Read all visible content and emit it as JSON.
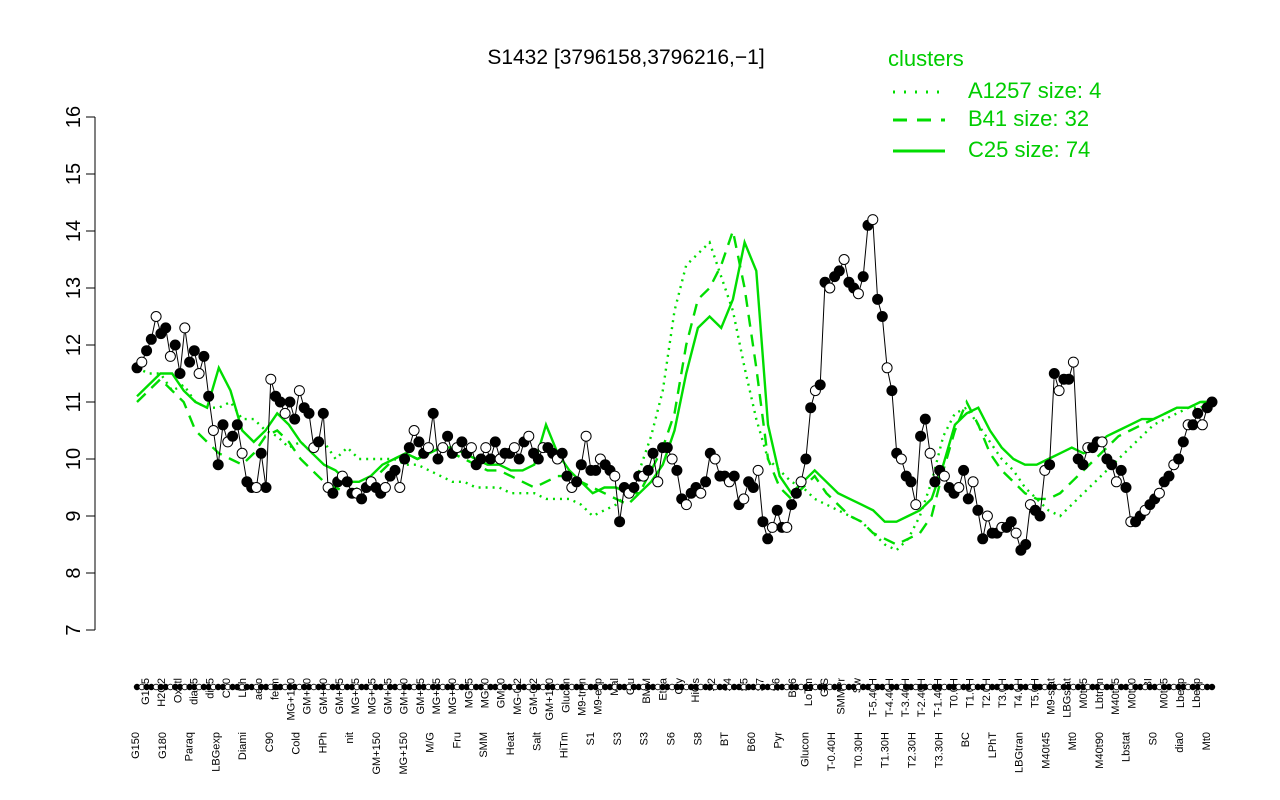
{
  "chart_data": {
    "type": "line",
    "title": "S1432 [3796158,3796216,−1]",
    "ylim": [
      7,
      16
    ],
    "yticks": [
      "7",
      "8",
      "9",
      "10",
      "11",
      "12",
      "13",
      "14",
      "15",
      "16"
    ],
    "x_tick_labels_top": [
      "G135",
      "H2O2",
      "Oxctl",
      "dia15",
      "dia5",
      "C30",
      "LPh",
      "aero",
      "ferm",
      "MG+120",
      "GM+90",
      "GM+60",
      "GM+45",
      "MG+45",
      "MG+25",
      "GM+25",
      "GM+10",
      "GM+15",
      "MG+15",
      "MG+10",
      "MG+5",
      "MG+0",
      "GM+0",
      "MG-0.2",
      "GM-0.2",
      "GM+150",
      "Glucon",
      "M9-tran",
      "M9-exp",
      "Mal",
      "Glu",
      "BMM",
      "Etha",
      "Gly",
      "HiOs",
      "S2",
      "S4",
      "S5",
      "S7",
      "S6",
      "B36",
      "LoTm",
      "G/S",
      "SMMPr",
      "Sw",
      "T-5.40H",
      "T-4.40H",
      "T-3.40H",
      "T-2.40H",
      "T-1.40H",
      "T0.0H",
      "T1.0H",
      "T2.0H",
      "T3.0H",
      "T4.0H",
      "T5.0H",
      "M9-stat",
      "LBGstat",
      "M0t45",
      "Lbtran",
      "M40t45",
      "M0t90",
      "BI",
      "M0t45",
      "Lbexp",
      "Lbexp"
    ],
    "x_tick_labels_bottom": [
      "G150",
      "G180",
      "Paraq",
      "LBGexp",
      "Diami",
      "C90",
      "Cold",
      "HPh",
      "nit",
      "GM+150",
      "MG+150",
      "M/G",
      "Fru",
      "SMM",
      "Heat",
      "Salt",
      "HiTm",
      "S1",
      "S3",
      "S3",
      "S6",
      "S8",
      "BT",
      "B60",
      "Pyr",
      "Glucon",
      "T-0.40H",
      "T0.30H",
      "T1.30H",
      "T2.30H",
      "T3.30H",
      "BC",
      "LPhT",
      "LBGtran",
      "M40t45",
      "Mt0",
      "M40t90",
      "Lbstat",
      "S0",
      "dia0",
      "Mt0"
    ],
    "points": [
      11.6,
      11.7,
      11.9,
      12.1,
      12.5,
      12.2,
      12.3,
      11.8,
      12.0,
      11.5,
      12.3,
      11.7,
      11.9,
      11.5,
      11.8,
      11.1,
      10.5,
      9.9,
      10.6,
      10.3,
      10.4,
      10.6,
      10.1,
      9.6,
      9.5,
      9.5,
      10.1,
      9.5,
      11.4,
      11.1,
      11.0,
      10.8,
      11.0,
      10.7,
      11.2,
      10.9,
      10.8,
      10.2,
      10.3,
      10.8,
      9.5,
      9.4,
      9.6,
      9.7,
      9.6,
      9.4,
      9.4,
      9.3,
      9.5,
      9.6,
      9.5,
      9.4,
      9.5,
      9.7,
      9.8,
      9.5,
      10.0,
      10.2,
      10.5,
      10.3,
      10.1,
      10.2,
      10.8,
      10.0,
      10.2,
      10.4,
      10.1,
      10.2,
      10.3,
      10.1,
      10.2,
      9.9,
      10.0,
      10.2,
      10.0,
      10.3,
      10.0,
      10.1,
      10.1,
      10.2,
      10.0,
      10.3,
      10.4,
      10.1,
      10.0,
      10.2,
      10.2,
      10.1,
      10.0,
      10.1,
      9.7,
      9.5,
      9.6,
      9.9,
      10.4,
      9.8,
      9.8,
      10.0,
      9.9,
      9.8,
      9.7,
      8.9,
      9.5,
      9.4,
      9.5,
      9.7,
      9.7,
      9.8,
      10.1,
      9.6,
      10.2,
      10.2,
      10.0,
      9.8,
      9.3,
      9.2,
      9.4,
      9.5,
      9.4,
      9.6,
      10.1,
      10.0,
      9.7,
      9.7,
      9.6,
      9.7,
      9.2,
      9.3,
      9.6,
      9.5,
      9.8,
      8.9,
      8.6,
      8.8,
      9.1,
      8.8,
      8.8,
      9.2,
      9.4,
      9.6,
      10.0,
      10.9,
      11.2,
      11.3,
      13.1,
      13.0,
      13.2,
      13.3,
      13.5,
      13.1,
      13.0,
      12.9,
      13.2,
      14.1,
      14.2,
      12.8,
      12.5,
      11.6,
      11.2,
      10.1,
      10.0,
      9.7,
      9.6,
      9.2,
      10.4,
      10.7,
      10.1,
      9.6,
      9.8,
      9.7,
      9.5,
      9.4,
      9.5,
      9.8,
      9.3,
      9.6,
      9.1,
      8.6,
      9.0,
      8.7,
      8.7,
      8.8,
      8.8,
      8.9,
      8.7,
      8.4,
      8.5,
      9.2,
      9.1,
      9.0,
      9.8,
      9.9,
      11.5,
      11.2,
      11.4,
      11.4,
      11.7,
      10.0,
      9.9,
      10.2,
      10.2,
      10.3,
      10.3,
      10.0,
      9.9,
      9.6,
      9.8,
      9.5,
      8.9,
      8.9,
      9.0,
      9.1,
      9.2,
      9.3,
      9.4,
      9.6,
      9.7,
      9.9,
      10.0,
      10.3,
      10.6,
      10.6,
      10.8,
      10.6,
      10.9,
      11.0
    ],
    "series": [
      {
        "name": "A1257 size: 4",
        "color": "#00dd00",
        "style": "dotted",
        "values": [
          11.6,
          11.5,
          11.5,
          11.2,
          11.3,
          11.0,
          10.9,
          10.9,
          11.0,
          10.7,
          10.7,
          10.5,
          10.4,
          10.2,
          10.3,
          10.1,
          10.3,
          10.0,
          10.2,
          10.0,
          10.0,
          10.0,
          10.0,
          9.9,
          9.9,
          9.8,
          9.7,
          9.6,
          9.6,
          9.5,
          9.5,
          9.5,
          9.4,
          9.4,
          9.4,
          9.3,
          9.3,
          9.3,
          9.2,
          9.0,
          9.1,
          9.2,
          9.4,
          9.8,
          10.4,
          11.2,
          12.6,
          13.4,
          13.6,
          13.8,
          13.2,
          12.6,
          11.6,
          10.7,
          10.0,
          9.8,
          9.6,
          9.5,
          9.3,
          9.2,
          9.1,
          9.0,
          8.9,
          8.7,
          8.5,
          8.4,
          8.6,
          9.0,
          9.6,
          10.4,
          10.8,
          10.9,
          10.6,
          10.3,
          10.0,
          9.8,
          9.5,
          9.3,
          9.1,
          9.0,
          9.2,
          9.4,
          9.6,
          9.8,
          10.0,
          10.2,
          10.4,
          10.6,
          10.7,
          10.8,
          10.9,
          10.9,
          11.0
        ]
      },
      {
        "name": "B41 size: 32",
        "color": "#00dd00",
        "style": "dashed",
        "values": [
          11.0,
          11.2,
          11.4,
          11.2,
          11.0,
          10.5,
          10.3,
          10.1,
          10.0,
          9.9,
          10.1,
          10.4,
          10.5,
          10.3,
          10.0,
          9.8,
          9.6,
          9.5,
          9.4,
          9.5,
          9.6,
          9.8,
          10.0,
          10.1,
          10.0,
          10.1,
          10.2,
          10.1,
          10.0,
          9.9,
          9.8,
          9.8,
          9.7,
          9.6,
          9.5,
          9.6,
          9.7,
          9.7,
          9.6,
          9.5,
          9.4,
          9.3,
          9.2,
          9.4,
          9.8,
          10.2,
          10.8,
          12.0,
          12.8,
          13.0,
          13.4,
          14.0,
          13.0,
          11.6,
          10.0,
          9.5,
          9.3,
          9.5,
          9.7,
          9.4,
          9.2,
          9.0,
          8.9,
          8.7,
          8.6,
          8.5,
          8.6,
          8.7,
          9.0,
          9.8,
          10.5,
          11.0,
          10.6,
          10.1,
          9.8,
          9.6,
          9.4,
          9.3,
          9.3,
          9.4,
          9.6,
          9.8,
          10.0,
          10.2,
          10.4,
          10.5,
          10.6,
          10.7,
          10.8,
          10.9,
          10.9,
          11.0,
          11.0
        ]
      },
      {
        "name": "C25 size: 74",
        "color": "#00dd00",
        "style": "solid",
        "values": [
          11.1,
          11.3,
          11.5,
          11.5,
          11.2,
          11.0,
          10.9,
          11.6,
          11.2,
          10.5,
          10.3,
          10.5,
          10.8,
          10.6,
          10.3,
          10.1,
          9.9,
          9.8,
          9.6,
          9.6,
          9.7,
          9.9,
          10.0,
          10.1,
          10.0,
          10.1,
          10.2,
          10.2,
          10.1,
          10.0,
          9.9,
          9.9,
          9.8,
          9.8,
          9.9,
          10.6,
          10.1,
          9.8,
          9.6,
          9.4,
          9.5,
          9.5,
          9.4,
          9.4,
          9.6,
          9.9,
          10.5,
          11.5,
          12.3,
          12.5,
          12.3,
          12.8,
          13.8,
          13.3,
          10.6,
          9.7,
          9.4,
          9.6,
          9.8,
          9.6,
          9.4,
          9.3,
          9.2,
          9.1,
          8.9,
          8.9,
          9.0,
          9.1,
          9.3,
          9.9,
          10.6,
          10.8,
          10.9,
          10.5,
          10.2,
          10.0,
          9.9,
          9.9,
          10.0,
          10.1,
          10.2,
          10.1,
          10.2,
          10.4,
          10.5,
          10.6,
          10.7,
          10.7,
          10.8,
          10.9,
          10.9,
          11.0,
          11.0
        ]
      }
    ],
    "legend_title": "clusters",
    "legend_position": "top-right",
    "grid": false
  }
}
